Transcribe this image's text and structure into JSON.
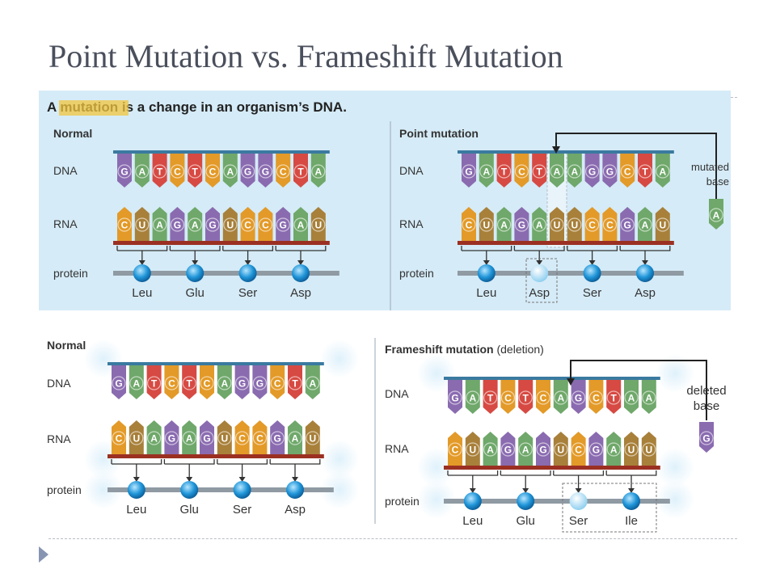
{
  "title": "Point Mutation vs. Frameshift Mutation",
  "colors": {
    "G": "#8a6bb0",
    "A": "#6fa86a",
    "T": "#d64a43",
    "C": "#e39a28",
    "U": "#a8803a",
    "panel_top": "#d5ebf7",
    "backbone": "#3a7aa0",
    "rna_backbone": "#9b3022",
    "protein": "#8f9aa3",
    "amino": "#1f95d8",
    "highlight": "#f2c53d"
  },
  "top_panel": {
    "heading_prefix": "A ",
    "heading_highlight": "mutation",
    "heading_rest": " is a change in an organism’s DNA.",
    "normal": {
      "label": "Normal",
      "dna_label": "DNA",
      "rna_label": "RNA",
      "protein_label": "protein",
      "dna": [
        "G",
        "A",
        "T",
        "C",
        "T",
        "C",
        "A",
        "G",
        "G",
        "C",
        "T",
        "A"
      ],
      "rna": [
        "C",
        "U",
        "A",
        "G",
        "A",
        "G",
        "U",
        "C",
        "C",
        "G",
        "A",
        "U"
      ],
      "amino_acids": [
        "Leu",
        "Glu",
        "Ser",
        "Asp"
      ]
    },
    "point": {
      "label": "Point mutation",
      "dna_label": "DNA",
      "rna_label": "RNA",
      "protein_label": "protein",
      "dna": [
        "G",
        "A",
        "T",
        "C",
        "T",
        "A",
        "A",
        "G",
        "G",
        "C",
        "T",
        "A"
      ],
      "rna": [
        "C",
        "U",
        "A",
        "G",
        "A",
        "U",
        "U",
        "C",
        "C",
        "G",
        "A",
        "U"
      ],
      "amino_acids": [
        "Leu",
        "Asp",
        "Ser",
        "Asp"
      ],
      "mutated_line1": "mutated",
      "mutated_line2": "base",
      "mutated_base": "A"
    }
  },
  "bottom_panel": {
    "normal": {
      "label": "Normal",
      "dna_label": "DNA",
      "rna_label": "RNA",
      "protein_label": "protein",
      "dna": [
        "G",
        "A",
        "T",
        "C",
        "T",
        "C",
        "A",
        "G",
        "G",
        "C",
        "T",
        "A"
      ],
      "rna": [
        "C",
        "U",
        "A",
        "G",
        "A",
        "G",
        "U",
        "C",
        "C",
        "G",
        "A",
        "U"
      ],
      "amino_acids": [
        "Leu",
        "Glu",
        "Ser",
        "Asp"
      ]
    },
    "frameshift": {
      "label_bold": "Frameshift mutation",
      "label_rest": " (deletion)",
      "dna_label": "DNA",
      "rna_label": "RNA",
      "protein_label": "protein",
      "dna": [
        "G",
        "A",
        "T",
        "C",
        "T",
        "C",
        "A",
        "G",
        "C",
        "T",
        "A",
        "A"
      ],
      "rna": [
        "C",
        "U",
        "A",
        "G",
        "A",
        "G",
        "U",
        "C",
        "G",
        "A",
        "U",
        "U"
      ],
      "amino_acids": [
        "Leu",
        "Glu",
        "Ser",
        "Ile"
      ],
      "deleted_line1": "deleted",
      "deleted_line2": "base",
      "deleted_base": "G"
    }
  }
}
